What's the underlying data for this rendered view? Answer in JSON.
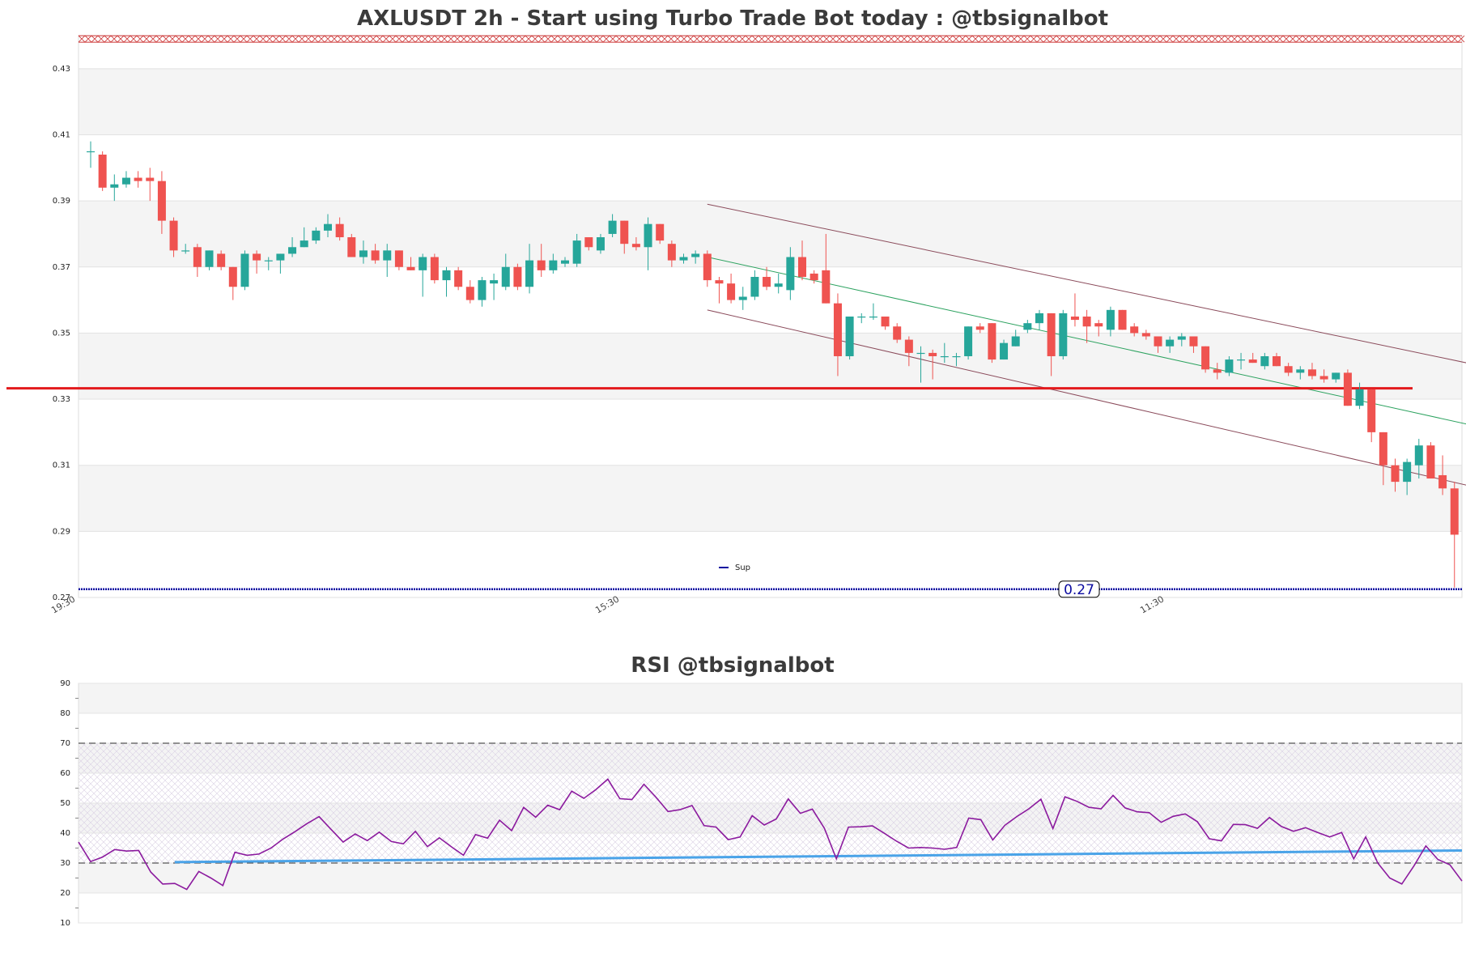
{
  "chart_data": [
    {
      "type": "candlestick",
      "title": "AXLUSDT 2h - Start using Turbo Trade Bot today : @tbsignalbot",
      "ylim": [
        0.27,
        0.44
      ],
      "yticks": [
        "0.27",
        "0.29",
        "0.31",
        "0.33",
        "0.35",
        "0.37",
        "0.39",
        "0.41",
        "0.43"
      ],
      "xticks": [
        "19:30",
        "15:30",
        "11:30"
      ],
      "legend": {
        "label": "Sup",
        "position": "bottom-center"
      },
      "support_level": 0.2725,
      "support_label": "0.27",
      "resistance_level": 0.439,
      "horizontal_line": 0.3333,
      "colors": {
        "up": "#26a69a",
        "down": "#ef5350",
        "support": "#0a0aa0",
        "resistance": "#cc3333",
        "horizontal": "#e31a1c",
        "channel": "#8a4a5a",
        "mid": "#2ca25f"
      },
      "candles": [
        [
          0.405,
          0.408,
          0.4,
          0.405
        ],
        [
          0.404,
          0.405,
          0.393,
          0.394
        ],
        [
          0.394,
          0.398,
          0.39,
          0.395
        ],
        [
          0.395,
          0.399,
          0.394,
          0.397
        ],
        [
          0.397,
          0.399,
          0.394,
          0.396
        ],
        [
          0.397,
          0.4,
          0.39,
          0.396
        ],
        [
          0.396,
          0.399,
          0.38,
          0.384
        ],
        [
          0.384,
          0.385,
          0.373,
          0.375
        ],
        [
          0.375,
          0.377,
          0.374,
          0.375
        ],
        [
          0.376,
          0.377,
          0.367,
          0.37
        ],
        [
          0.37,
          0.375,
          0.369,
          0.375
        ],
        [
          0.374,
          0.375,
          0.369,
          0.37
        ],
        [
          0.37,
          0.37,
          0.36,
          0.364
        ],
        [
          0.364,
          0.375,
          0.363,
          0.374
        ],
        [
          0.374,
          0.375,
          0.368,
          0.372
        ],
        [
          0.372,
          0.373,
          0.369,
          0.372
        ],
        [
          0.372,
          0.374,
          0.368,
          0.374
        ],
        [
          0.374,
          0.379,
          0.373,
          0.376
        ],
        [
          0.376,
          0.382,
          0.376,
          0.378
        ],
        [
          0.378,
          0.382,
          0.377,
          0.381
        ],
        [
          0.381,
          0.386,
          0.379,
          0.383
        ],
        [
          0.383,
          0.385,
          0.378,
          0.379
        ],
        [
          0.379,
          0.38,
          0.373,
          0.373
        ],
        [
          0.373,
          0.378,
          0.371,
          0.375
        ],
        [
          0.375,
          0.377,
          0.371,
          0.372
        ],
        [
          0.372,
          0.377,
          0.367,
          0.375
        ],
        [
          0.375,
          0.375,
          0.369,
          0.37
        ],
        [
          0.37,
          0.373,
          0.369,
          0.369
        ],
        [
          0.369,
          0.374,
          0.361,
          0.373
        ],
        [
          0.373,
          0.374,
          0.365,
          0.366
        ],
        [
          0.366,
          0.37,
          0.361,
          0.369
        ],
        [
          0.369,
          0.37,
          0.363,
          0.364
        ],
        [
          0.364,
          0.366,
          0.359,
          0.36
        ],
        [
          0.36,
          0.367,
          0.358,
          0.366
        ],
        [
          0.365,
          0.368,
          0.36,
          0.366
        ],
        [
          0.364,
          0.374,
          0.363,
          0.37
        ],
        [
          0.37,
          0.371,
          0.363,
          0.364
        ],
        [
          0.364,
          0.377,
          0.362,
          0.372
        ],
        [
          0.372,
          0.377,
          0.367,
          0.369
        ],
        [
          0.369,
          0.374,
          0.368,
          0.372
        ],
        [
          0.371,
          0.373,
          0.37,
          0.372
        ],
        [
          0.371,
          0.38,
          0.37,
          0.378
        ],
        [
          0.379,
          0.379,
          0.375,
          0.376
        ],
        [
          0.375,
          0.38,
          0.374,
          0.379
        ],
        [
          0.38,
          0.386,
          0.379,
          0.384
        ],
        [
          0.384,
          0.384,
          0.374,
          0.377
        ],
        [
          0.377,
          0.379,
          0.375,
          0.376
        ],
        [
          0.376,
          0.385,
          0.369,
          0.383
        ],
        [
          0.383,
          0.383,
          0.377,
          0.378
        ],
        [
          0.377,
          0.378,
          0.37,
          0.372
        ],
        [
          0.372,
          0.374,
          0.371,
          0.373
        ],
        [
          0.373,
          0.375,
          0.371,
          0.374
        ],
        [
          0.374,
          0.375,
          0.364,
          0.366
        ],
        [
          0.366,
          0.367,
          0.359,
          0.365
        ],
        [
          0.365,
          0.368,
          0.359,
          0.36
        ],
        [
          0.36,
          0.364,
          0.357,
          0.361
        ],
        [
          0.361,
          0.369,
          0.36,
          0.367
        ],
        [
          0.367,
          0.37,
          0.363,
          0.364
        ],
        [
          0.364,
          0.368,
          0.362,
          0.365
        ],
        [
          0.363,
          0.376,
          0.36,
          0.373
        ],
        [
          0.373,
          0.378,
          0.366,
          0.367
        ],
        [
          0.368,
          0.369,
          0.365,
          0.366
        ],
        [
          0.369,
          0.38,
          0.359,
          0.359
        ],
        [
          0.359,
          0.362,
          0.337,
          0.343
        ],
        [
          0.343,
          0.355,
          0.342,
          0.355
        ],
        [
          0.355,
          0.356,
          0.353,
          0.355
        ],
        [
          0.355,
          0.359,
          0.354,
          0.355
        ],
        [
          0.355,
          0.355,
          0.351,
          0.352
        ],
        [
          0.352,
          0.353,
          0.347,
          0.348
        ],
        [
          0.348,
          0.349,
          0.34,
          0.344
        ],
        [
          0.344,
          0.346,
          0.335,
          0.344
        ],
        [
          0.344,
          0.345,
          0.336,
          0.343
        ],
        [
          0.343,
          0.347,
          0.341,
          0.343
        ],
        [
          0.343,
          0.344,
          0.34,
          0.343
        ],
        [
          0.343,
          0.352,
          0.342,
          0.352
        ],
        [
          0.352,
          0.353,
          0.35,
          0.351
        ],
        [
          0.353,
          0.353,
          0.341,
          0.342
        ],
        [
          0.342,
          0.348,
          0.342,
          0.347
        ],
        [
          0.346,
          0.351,
          0.346,
          0.349
        ],
        [
          0.351,
          0.354,
          0.35,
          0.353
        ],
        [
          0.353,
          0.357,
          0.351,
          0.356
        ],
        [
          0.356,
          0.356,
          0.337,
          0.343
        ],
        [
          0.343,
          0.357,
          0.342,
          0.356
        ],
        [
          0.355,
          0.362,
          0.352,
          0.354
        ],
        [
          0.355,
          0.357,
          0.347,
          0.352
        ],
        [
          0.353,
          0.354,
          0.349,
          0.352
        ],
        [
          0.351,
          0.358,
          0.349,
          0.357
        ],
        [
          0.357,
          0.357,
          0.351,
          0.351
        ],
        [
          0.352,
          0.353,
          0.349,
          0.35
        ],
        [
          0.35,
          0.351,
          0.348,
          0.349
        ],
        [
          0.349,
          0.349,
          0.344,
          0.346
        ],
        [
          0.346,
          0.349,
          0.344,
          0.348
        ],
        [
          0.348,
          0.35,
          0.346,
          0.349
        ],
        [
          0.349,
          0.349,
          0.344,
          0.346
        ],
        [
          0.346,
          0.346,
          0.338,
          0.339
        ],
        [
          0.339,
          0.341,
          0.336,
          0.338
        ],
        [
          0.338,
          0.343,
          0.337,
          0.342
        ],
        [
          0.342,
          0.344,
          0.339,
          0.342
        ],
        [
          0.342,
          0.344,
          0.341,
          0.341
        ],
        [
          0.34,
          0.344,
          0.339,
          0.343
        ],
        [
          0.343,
          0.344,
          0.34,
          0.34
        ],
        [
          0.34,
          0.341,
          0.337,
          0.338
        ],
        [
          0.338,
          0.34,
          0.336,
          0.339
        ],
        [
          0.339,
          0.341,
          0.336,
          0.337
        ],
        [
          0.337,
          0.339,
          0.335,
          0.336
        ],
        [
          0.336,
          0.338,
          0.335,
          0.338
        ],
        [
          0.338,
          0.339,
          0.328,
          0.328
        ],
        [
          0.328,
          0.335,
          0.327,
          0.333
        ],
        [
          0.333,
          0.333,
          0.317,
          0.32
        ],
        [
          0.32,
          0.32,
          0.304,
          0.31
        ],
        [
          0.31,
          0.312,
          0.302,
          0.305
        ],
        [
          0.305,
          0.312,
          0.301,
          0.311
        ],
        [
          0.31,
          0.318,
          0.306,
          0.316
        ],
        [
          0.316,
          0.317,
          0.306,
          0.306
        ],
        [
          0.307,
          0.313,
          0.301,
          0.303
        ],
        [
          0.303,
          0.305,
          0.273,
          0.289
        ]
      ],
      "channel_upper": {
        "x": [
          52,
          116
        ],
        "y": [
          0.389,
          0.341
        ]
      },
      "channel_lower": {
        "x": [
          52,
          116
        ],
        "y": [
          0.357,
          0.304
        ]
      },
      "channel_mid": {
        "x": [
          52,
          116
        ],
        "y": [
          0.373,
          0.3225
        ]
      }
    },
    {
      "type": "line",
      "title": "RSI @tbsignalbot",
      "ylim": [
        10,
        90
      ],
      "yticks": [
        "10",
        "20",
        "30",
        "40",
        "50",
        "60",
        "70",
        "80",
        "90"
      ],
      "levels": [
        30,
        70
      ],
      "series": [
        {
          "values": [
            37,
            30.5,
            32,
            34.5,
            34,
            34.2,
            27,
            23,
            23.2,
            21.2,
            27.2,
            25,
            22.5,
            33.6,
            32.6,
            33,
            35,
            38,
            40.5,
            43.2,
            45.5,
            41.2,
            37,
            39.7,
            37.5,
            40.3,
            37.2,
            36.4,
            40.6,
            35.5,
            38.4,
            35.4,
            32.6,
            39.5,
            38.3,
            44.3,
            40.8,
            48.6,
            45.3,
            49.3,
            47.8,
            54,
            51.6,
            54.5,
            58,
            51.5,
            51.2,
            56.3,
            52,
            47.2,
            47.8,
            49.2,
            42.5,
            42,
            37.8,
            38.7,
            45.8,
            42.7,
            44.7,
            51.4,
            46.6,
            48,
            41.6,
            31.4,
            42,
            42.1,
            42.4,
            39.9,
            37.3,
            35,
            35.2,
            35,
            34.6,
            35.2,
            45,
            44.5,
            37.7,
            42.6,
            45.5,
            48.1,
            51.3,
            41.5,
            52.1,
            50.6,
            48.6,
            48.1,
            52.6,
            48.4,
            47.1,
            46.8,
            43.6,
            45.6,
            46.4,
            43.8,
            38.1,
            37.4,
            42.9,
            42.8,
            41.6,
            45.2,
            42.2,
            40.6,
            41.8,
            40.2,
            38.7,
            40.2,
            31.4,
            38.7,
            30,
            25,
            23,
            29,
            35.7,
            31.2,
            29.4,
            24
          ]
        }
      ],
      "trendline": {
        "x": [
          8,
          115
        ],
        "y": [
          30.3,
          34.2
        ]
      },
      "colors": {
        "rsi": "#8b1a9e",
        "trend": "#4aa3e8"
      }
    }
  ]
}
